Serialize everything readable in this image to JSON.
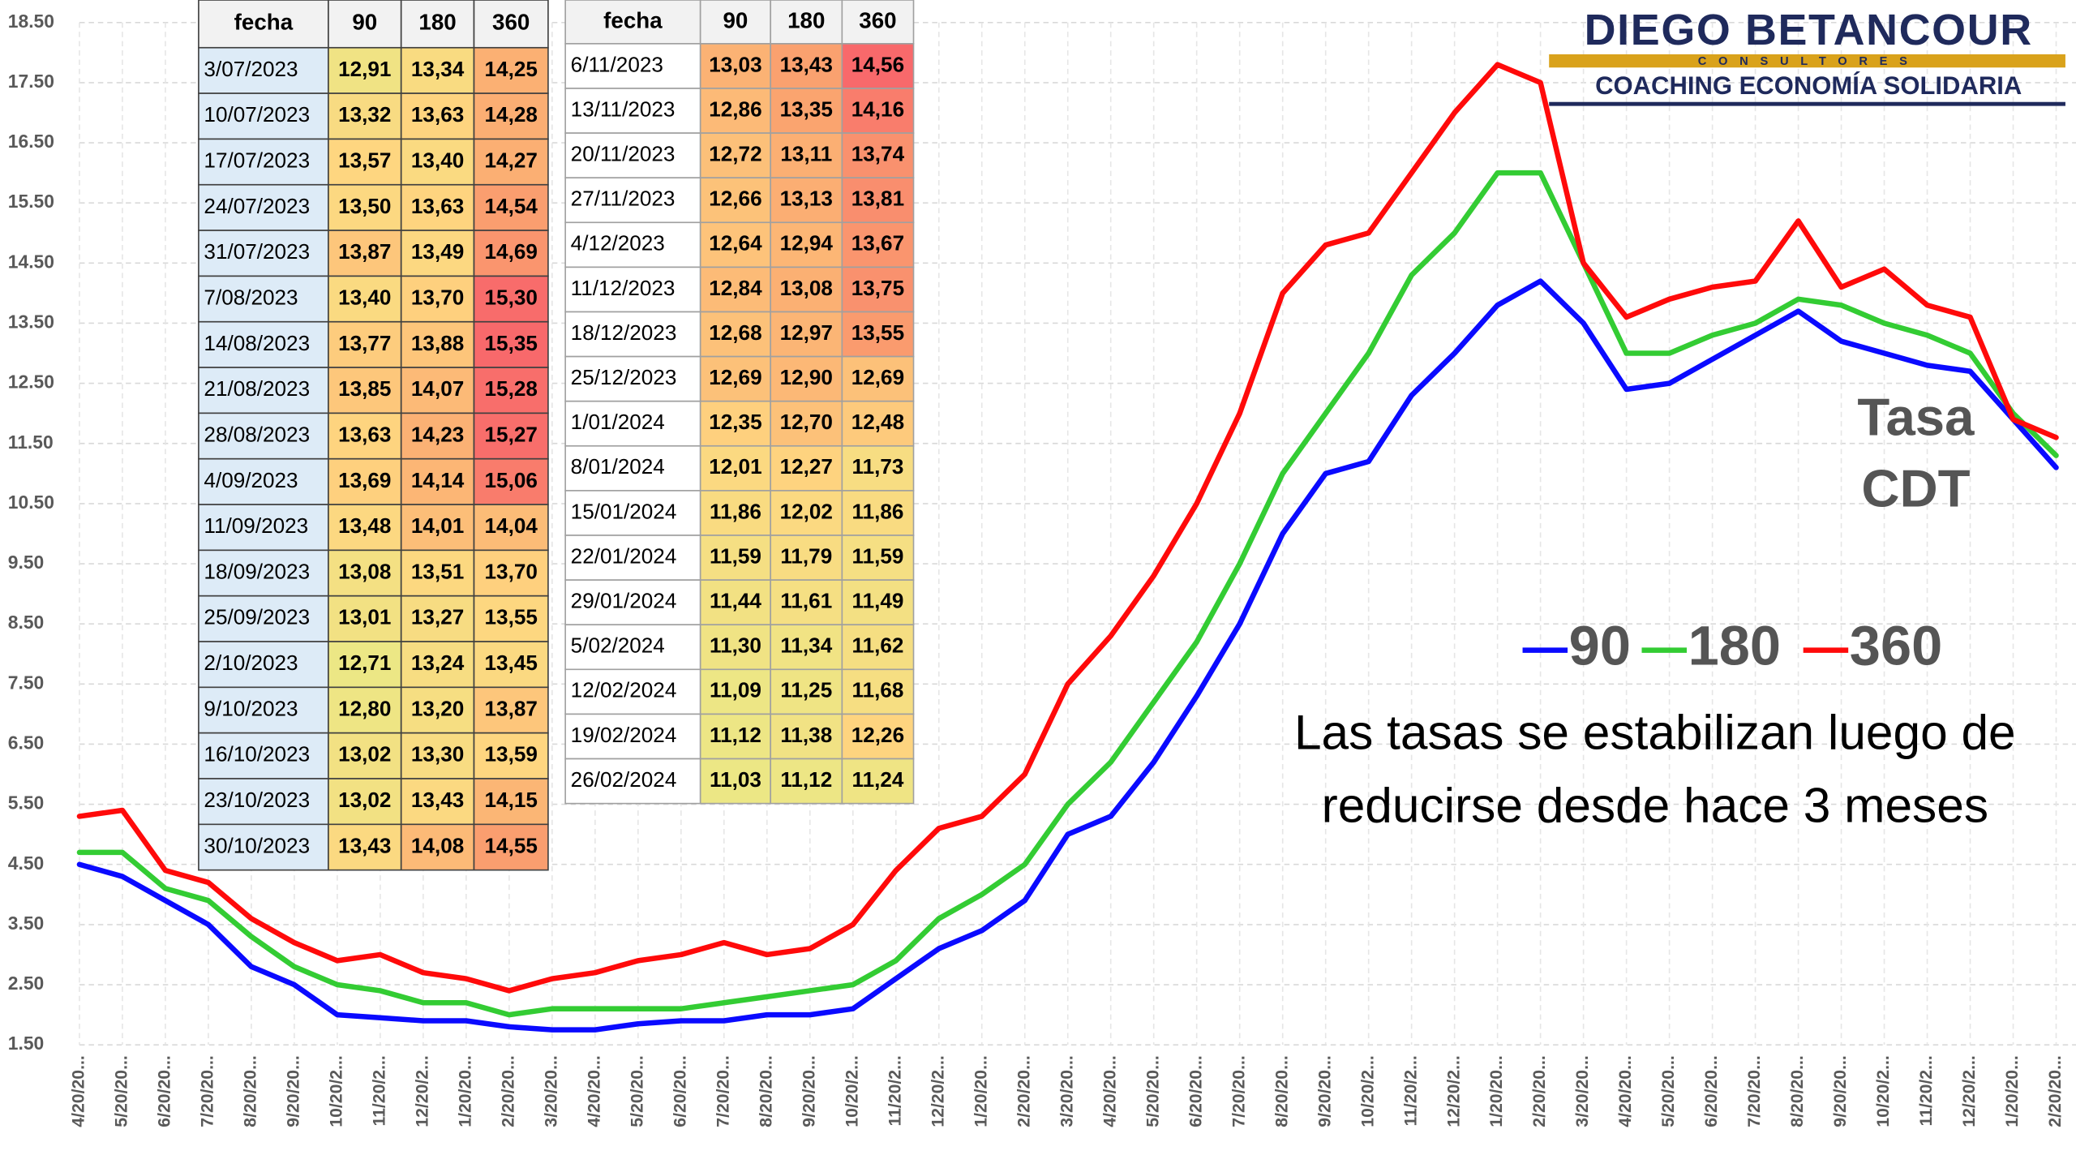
{
  "chart_data": {
    "type": "line",
    "categories": [
      "4/20/20...",
      "5/20/20...",
      "6/20/20...",
      "7/20/20...",
      "8/20/20...",
      "9/20/20...",
      "10/20/2...",
      "11/20/2...",
      "12/20/2...",
      "1/20/20...",
      "2/20/20...",
      "3/20/20...",
      "4/20/20...",
      "5/20/20...",
      "6/20/20...",
      "7/20/20...",
      "8/20/20...",
      "9/20/20...",
      "10/20/2...",
      "11/20/2...",
      "12/20/2...",
      "1/20/20...",
      "2/20/20...",
      "3/20/20...",
      "4/20/20...",
      "5/20/20...",
      "6/20/20...",
      "7/20/20...",
      "8/20/20...",
      "9/20/20...",
      "10/20/2...",
      "11/20/2...",
      "12/20/2...",
      "1/20/20...",
      "2/20/20...",
      "3/20/20...",
      "4/20/20...",
      "5/20/20...",
      "6/20/20...",
      "7/20/20...",
      "8/20/20...",
      "9/20/20...",
      "10/20/2...",
      "11/20/2...",
      "12/20/2...",
      "1/20/20...",
      "2/20/20..."
    ],
    "series": [
      {
        "name": "90",
        "color": "#0a0aff",
        "values": [
          4.5,
          4.3,
          3.9,
          3.5,
          2.8,
          2.5,
          2.0,
          1.95,
          1.9,
          1.9,
          1.8,
          1.75,
          1.75,
          1.85,
          1.9,
          1.9,
          2.0,
          2.0,
          2.1,
          2.6,
          3.1,
          3.4,
          3.9,
          5.0,
          5.3,
          6.2,
          7.3,
          8.5,
          10.0,
          11.0,
          11.2,
          12.3,
          13.0,
          13.8,
          14.2,
          13.5,
          12.4,
          12.5,
          12.9,
          13.3,
          13.7,
          13.2,
          13.0,
          12.8,
          12.7,
          11.9,
          11.1
        ]
      },
      {
        "name": "180",
        "color": "#33cc33",
        "values": [
          4.7,
          4.7,
          4.1,
          3.9,
          3.3,
          2.8,
          2.5,
          2.4,
          2.2,
          2.2,
          2.0,
          2.1,
          2.1,
          2.1,
          2.1,
          2.2,
          2.3,
          2.4,
          2.5,
          2.9,
          3.6,
          4.0,
          4.5,
          5.5,
          6.2,
          7.2,
          8.2,
          9.5,
          11.0,
          12.0,
          13.0,
          14.3,
          15.0,
          16.0,
          16.0,
          14.5,
          13.0,
          13.0,
          13.3,
          13.5,
          13.9,
          13.8,
          13.5,
          13.3,
          13.0,
          12.0,
          11.3
        ]
      },
      {
        "name": "360",
        "color": "#ff0a0a",
        "values": [
          5.3,
          5.4,
          4.4,
          4.2,
          3.6,
          3.2,
          2.9,
          3.0,
          2.7,
          2.6,
          2.4,
          2.6,
          2.7,
          2.9,
          3.0,
          3.2,
          3.0,
          3.1,
          3.5,
          4.4,
          5.1,
          5.3,
          6.0,
          7.5,
          8.3,
          9.3,
          10.5,
          12.0,
          14.0,
          14.8,
          15.0,
          16.0,
          17.0,
          17.8,
          17.5,
          14.5,
          13.6,
          13.9,
          14.1,
          14.2,
          15.2,
          14.1,
          14.4,
          13.8,
          13.6,
          11.9,
          11.6
        ]
      }
    ],
    "ylim": [
      1.5,
      18.5
    ],
    "yticks": [
      {
        "value": 1.5,
        "label": "1.50"
      },
      {
        "value": 2.5,
        "label": "2.50"
      },
      {
        "value": 3.5,
        "label": "3.50"
      },
      {
        "value": 4.5,
        "label": "4.50"
      },
      {
        "value": 5.5,
        "label": "5.50"
      },
      {
        "value": 6.5,
        "label": "6.50"
      },
      {
        "value": 7.5,
        "label": "7.50"
      },
      {
        "value": 8.5,
        "label": "8.50"
      },
      {
        "value": 9.5,
        "label": "9.50"
      },
      {
        "value": 10.5,
        "label": "10.50"
      },
      {
        "value": 11.5,
        "label": "11.50"
      },
      {
        "value": 12.5,
        "label": "12.50"
      },
      {
        "value": 13.5,
        "label": "13.50"
      },
      {
        "value": 14.5,
        "label": "14.50"
      },
      {
        "value": 15.5,
        "label": "15.50"
      },
      {
        "value": 16.5,
        "label": "16.50"
      },
      {
        "value": 17.5,
        "label": "17.50"
      },
      {
        "value": 18.5,
        "label": "18.50"
      }
    ],
    "grid": true,
    "label": [
      "Tasa",
      "CDT"
    ],
    "note": [
      "Las tasas se estabilizan luego de",
      "reducirse desde hace 3 meses"
    ]
  },
  "tables": [
    {
      "header": [
        "fecha",
        "90",
        "180",
        "360"
      ],
      "rows": [
        [
          "3/07/2023",
          "12,91",
          "13,34",
          "14,25"
        ],
        [
          "10/07/2023",
          "13,32",
          "13,63",
          "14,28"
        ],
        [
          "17/07/2023",
          "13,57",
          "13,40",
          "14,27"
        ],
        [
          "24/07/2023",
          "13,50",
          "13,63",
          "14,54"
        ],
        [
          "31/07/2023",
          "13,87",
          "13,49",
          "14,69"
        ],
        [
          "7/08/2023",
          "13,40",
          "13,70",
          "15,30"
        ],
        [
          "14/08/2023",
          "13,77",
          "13,88",
          "15,35"
        ],
        [
          "21/08/2023",
          "13,85",
          "14,07",
          "15,28"
        ],
        [
          "28/08/2023",
          "13,63",
          "14,23",
          "15,27"
        ],
        [
          "4/09/2023",
          "13,69",
          "14,14",
          "15,06"
        ],
        [
          "11/09/2023",
          "13,48",
          "14,01",
          "14,04"
        ],
        [
          "18/09/2023",
          "13,08",
          "13,51",
          "13,70"
        ],
        [
          "25/09/2023",
          "13,01",
          "13,27",
          "13,55"
        ],
        [
          "2/10/2023",
          "12,71",
          "13,24",
          "13,45"
        ],
        [
          "9/10/2023",
          "12,80",
          "13,20",
          "13,87"
        ],
        [
          "16/10/2023",
          "13,02",
          "13,30",
          "13,59"
        ],
        [
          "23/10/2023",
          "13,02",
          "13,43",
          "14,15"
        ],
        [
          "30/10/2023",
          "13,43",
          "14,08",
          "14,55"
        ]
      ]
    },
    {
      "header": [
        "fecha",
        "90",
        "180",
        "360"
      ],
      "rows": [
        [
          "6/11/2023",
          "13,03",
          "13,43",
          "14,56"
        ],
        [
          "13/11/2023",
          "12,86",
          "13,35",
          "14,16"
        ],
        [
          "20/11/2023",
          "12,72",
          "13,11",
          "13,74"
        ],
        [
          "27/11/2023",
          "12,66",
          "13,13",
          "13,81"
        ],
        [
          "4/12/2023",
          "12,64",
          "12,94",
          "13,67"
        ],
        [
          "11/12/2023",
          "12,84",
          "13,08",
          "13,75"
        ],
        [
          "18/12/2023",
          "12,68",
          "12,97",
          "13,55"
        ],
        [
          "25/12/2023",
          "12,69",
          "12,90",
          "12,69"
        ],
        [
          "1/01/2024",
          "12,35",
          "12,70",
          "12,48"
        ],
        [
          "8/01/2024",
          "12,01",
          "12,27",
          "11,73"
        ],
        [
          "15/01/2024",
          "11,86",
          "12,02",
          "11,86"
        ],
        [
          "22/01/2024",
          "11,59",
          "11,79",
          "11,59"
        ],
        [
          "29/01/2024",
          "11,44",
          "11,61",
          "11,49"
        ],
        [
          "5/02/2024",
          "11,30",
          "11,34",
          "11,62"
        ],
        [
          "12/02/2024",
          "11,09",
          "11,25",
          "11,68"
        ],
        [
          "19/02/2024",
          "11,12",
          "11,38",
          "12,26"
        ],
        [
          "26/02/2024",
          "11,03",
          "11,12",
          "11,24"
        ]
      ]
    }
  ],
  "logo": {
    "name": "DIEGO BETANCOUR",
    "subtitle": "CONSULTORES",
    "tagline": "COACHING ECONOMÍA SOLIDARIA"
  }
}
